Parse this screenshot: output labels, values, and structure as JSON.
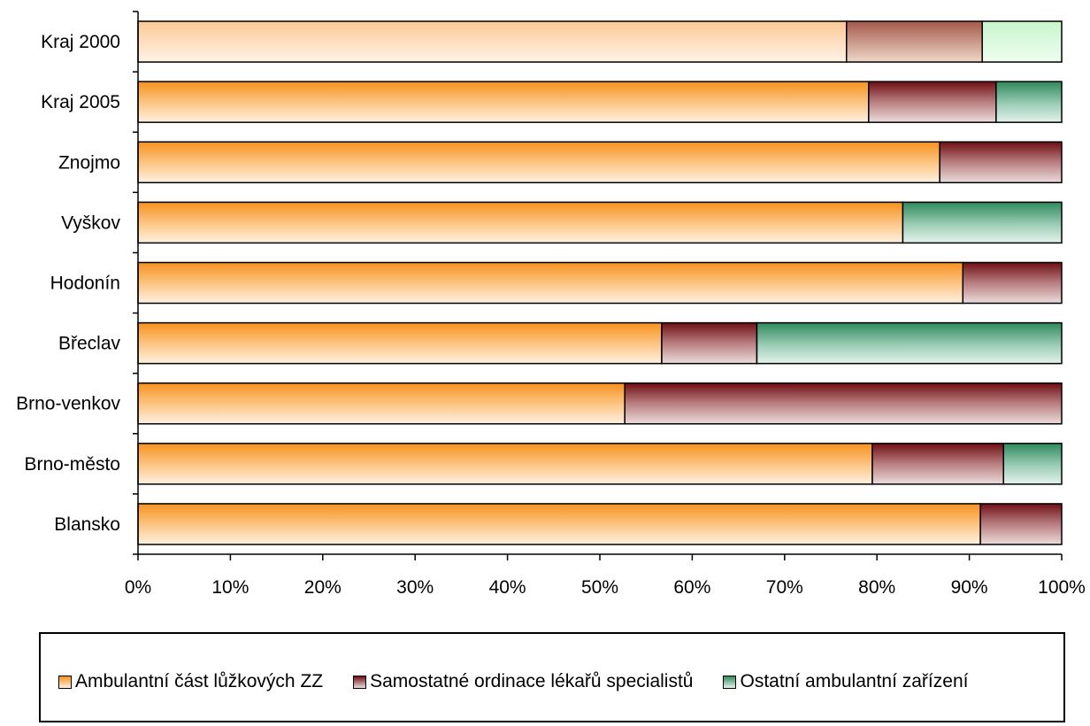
{
  "chart_data": {
    "type": "bar",
    "orientation": "horizontal",
    "stacking": "percent",
    "categories": [
      "Kraj 2000",
      "Kraj 2005",
      "Znojmo",
      "Vyškov",
      "Hodonín",
      "Břeclav",
      "Brno-venkov",
      "Brno-město",
      "Blansko"
    ],
    "series": [
      {
        "name": "Ambulantní část lůžkových ZZ",
        "color": "#f79a2e",
        "values": [
          76.7,
          79.1,
          86.8,
          82.8,
          89.3,
          56.7,
          52.7,
          79.5,
          91.2
        ]
      },
      {
        "name": "Samostatné ordinace lékařů specialistů",
        "color": "#8a2b2b",
        "values": [
          14.7,
          13.8,
          13.2,
          0,
          10.7,
          10.3,
          47.3,
          14.2,
          8.8
        ]
      },
      {
        "name": "Ostatní ambulantní zařízení",
        "color": "#3f8f6a",
        "values": [
          8.6,
          7.1,
          0,
          17.2,
          0,
          33.0,
          0,
          6.3,
          0
        ]
      }
    ],
    "xlim": [
      0,
      100
    ],
    "x_ticks": [
      "0%",
      "10%",
      "20%",
      "30%",
      "40%",
      "50%",
      "60%",
      "70%",
      "80%",
      "90%",
      "100%"
    ],
    "legend_position": "bottom",
    "grid": false
  }
}
